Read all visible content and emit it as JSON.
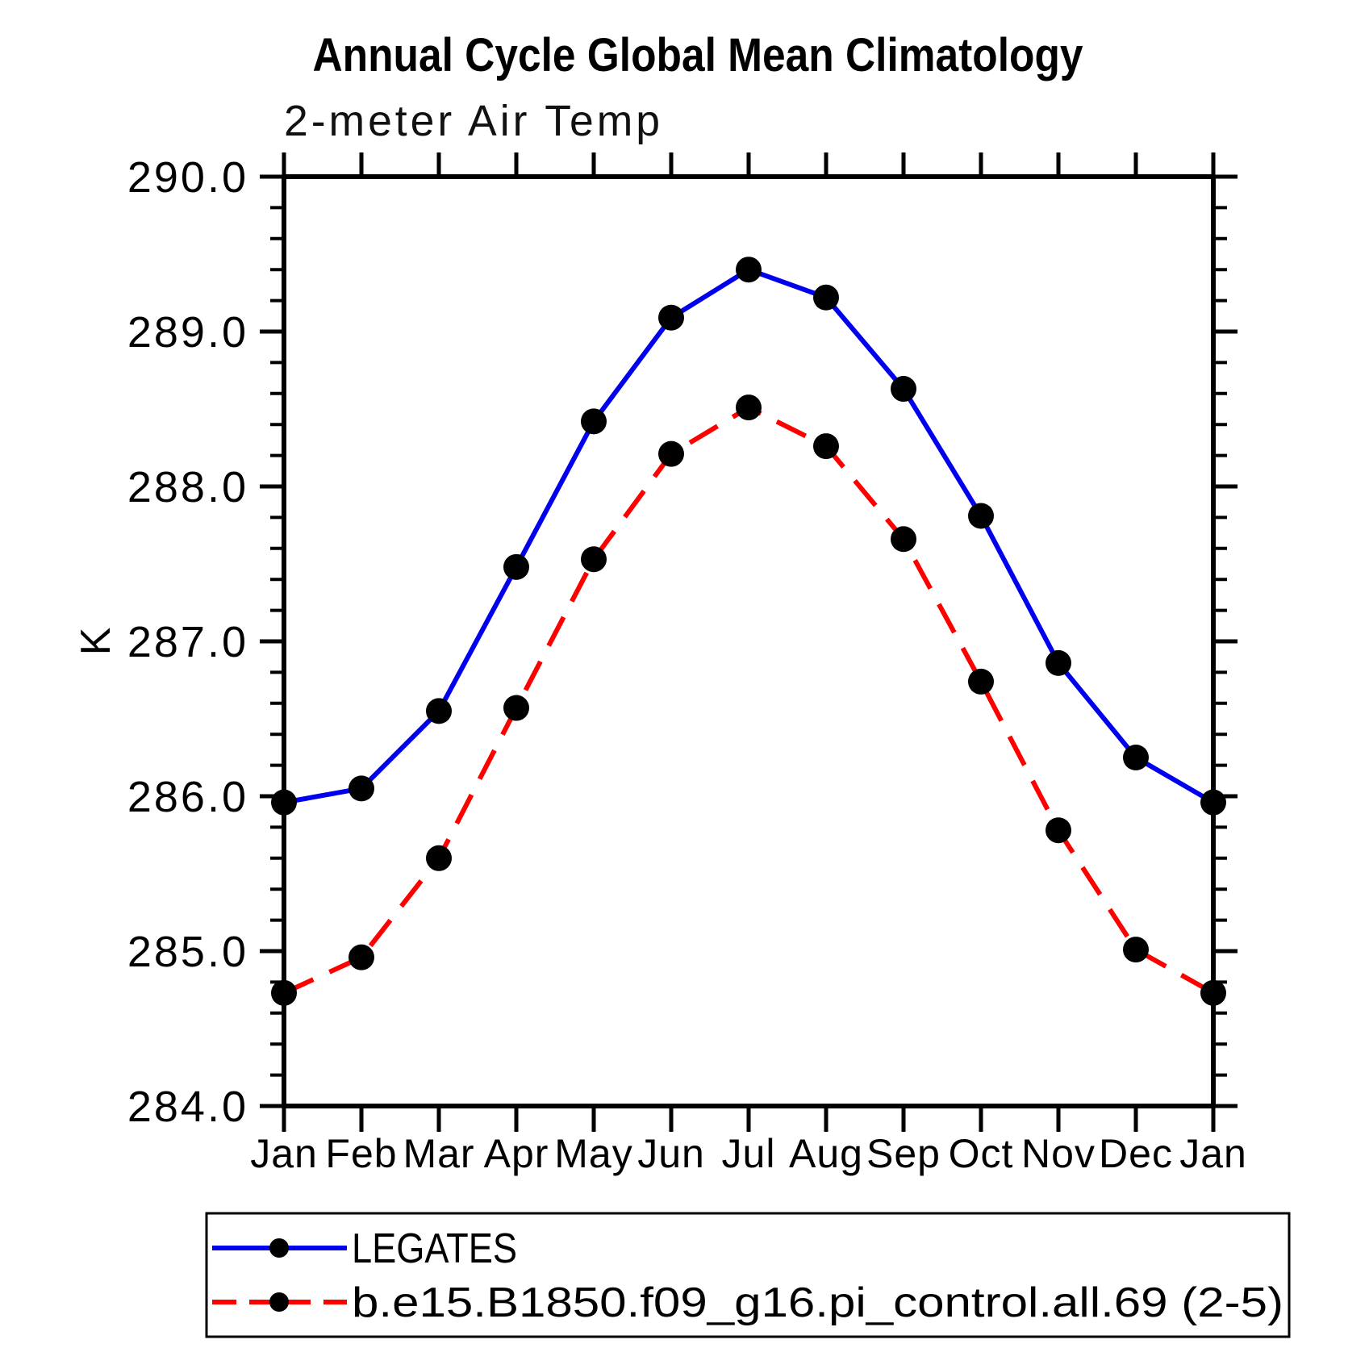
{
  "chart_data": {
    "type": "line",
    "title": "Annual Cycle Global Mean Climatology",
    "subtitle": "2-meter Air Temp",
    "ylabel": "K",
    "categories": [
      "Jan",
      "Feb",
      "Mar",
      "Apr",
      "May",
      "Jun",
      "Jul",
      "Aug",
      "Sep",
      "Oct",
      "Nov",
      "Dec",
      "Jan"
    ],
    "ylim": [
      284.0,
      290.0
    ],
    "ytick_major": 1.0,
    "ytick_minor": 0.2,
    "ytick_labels": [
      "284.0",
      "285.0",
      "286.0",
      "287.0",
      "288.0",
      "289.0",
      "290.0"
    ],
    "grid": false,
    "legend_position": "bottom",
    "axis_color": "#000000",
    "marker_color": "#000000",
    "background_color": "#ffffff",
    "series": [
      {
        "name": "LEGATES",
        "line_color": "#0000ee",
        "line_style": "solid",
        "marker": "filled-circle",
        "values": [
          285.96,
          286.05,
          286.55,
          287.48,
          288.42,
          289.09,
          289.4,
          289.22,
          288.63,
          287.81,
          286.86,
          286.25,
          285.96
        ]
      },
      {
        "name": "b.e15.B1850.f09_g16.pi_control.all.69 (2-5)",
        "line_color": "#ff0000",
        "line_style": "dashed",
        "marker": "filled-circle",
        "values": [
          284.73,
          284.96,
          285.6,
          286.57,
          287.53,
          288.21,
          288.51,
          288.26,
          287.66,
          286.74,
          285.78,
          285.01,
          284.73
        ]
      }
    ]
  }
}
